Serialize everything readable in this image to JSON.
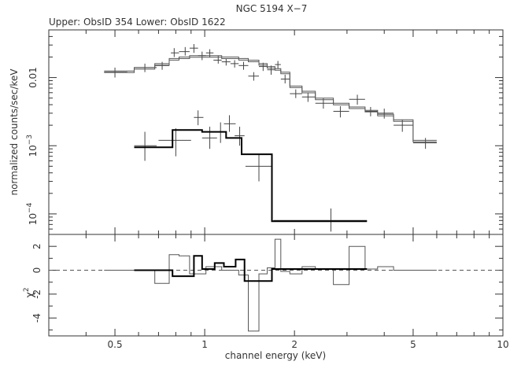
{
  "title": "NGC 5194 X−7",
  "subtitle": "Upper: ObsID 354 Lower: ObsID 1622",
  "chart_data": [
    {
      "type": "scatter",
      "panel": "spectrum",
      "xscale": "log",
      "yscale": "log",
      "xlim": [
        0.3,
        10
      ],
      "ylim": [
        5e-05,
        0.05
      ],
      "xlabel": "",
      "ylabel": "normalized counts/sec/keV",
      "yticks": [
        {
          "value": 0.01,
          "base": "0.01",
          "exp": ""
        },
        {
          "value": 0.001,
          "base": "10",
          "exp": "−3"
        },
        {
          "value": 0.0001,
          "base": "10",
          "exp": "−4"
        }
      ],
      "series": [
        {
          "kind": "data",
          "points": [
            {
              "x": 0.5,
              "xerr": [
                0.46,
                0.55
              ],
              "y": 0.012,
              "yerr": [
                0.01,
                0.014
              ]
            },
            {
              "x": 0.63,
              "xerr": [
                0.58,
                0.69
              ],
              "y": 0.014,
              "yerr": [
                0.012,
                0.016
              ]
            },
            {
              "x": 0.72,
              "xerr": [
                0.68,
                0.76
              ],
              "y": 0.015,
              "yerr": [
                0.013,
                0.017
              ]
            },
            {
              "x": 0.79,
              "xerr": [
                0.77,
                0.82
              ],
              "y": 0.023,
              "yerr": [
                0.02,
                0.027
              ]
            },
            {
              "x": 0.86,
              "xerr": [
                0.82,
                0.89
              ],
              "y": 0.024,
              "yerr": [
                0.021,
                0.028
              ]
            },
            {
              "x": 0.92,
              "xerr": [
                0.89,
                0.95
              ],
              "y": 0.027,
              "yerr": [
                0.023,
                0.031
              ]
            },
            {
              "x": 0.98,
              "xerr": [
                0.95,
                1.01
              ],
              "y": 0.021,
              "yerr": [
                0.018,
                0.024
              ]
            },
            {
              "x": 1.04,
              "xerr": [
                1.01,
                1.07
              ],
              "y": 0.023,
              "yerr": [
                0.02,
                0.026
              ]
            },
            {
              "x": 1.11,
              "xerr": [
                1.07,
                1.14
              ],
              "y": 0.018,
              "yerr": [
                0.016,
                0.021
              ]
            },
            {
              "x": 1.18,
              "xerr": [
                1.14,
                1.22
              ],
              "y": 0.017,
              "yerr": [
                0.015,
                0.019
              ]
            },
            {
              "x": 1.26,
              "xerr": [
                1.22,
                1.3
              ],
              "y": 0.016,
              "yerr": [
                0.014,
                0.018
              ]
            },
            {
              "x": 1.35,
              "xerr": [
                1.3,
                1.4
              ],
              "y": 0.015,
              "yerr": [
                0.013,
                0.017
              ]
            },
            {
              "x": 1.46,
              "xerr": [
                1.4,
                1.52
              ],
              "y": 0.0105,
              "yerr": [
                0.009,
                0.012
              ]
            },
            {
              "x": 1.57,
              "xerr": [
                1.52,
                1.62
              ],
              "y": 0.0145,
              "yerr": [
                0.0125,
                0.0165
              ]
            },
            {
              "x": 1.67,
              "xerr": [
                1.62,
                1.72
              ],
              "y": 0.013,
              "yerr": [
                0.011,
                0.015
              ]
            },
            {
              "x": 1.76,
              "xerr": [
                1.72,
                1.8
              ],
              "y": 0.0155,
              "yerr": [
                0.0135,
                0.0175
              ]
            },
            {
              "x": 1.86,
              "xerr": [
                1.8,
                1.93
              ],
              "y": 0.0095,
              "yerr": [
                0.0082,
                0.011
              ]
            },
            {
              "x": 2.02,
              "xerr": [
                1.93,
                2.12
              ],
              "y": 0.0058,
              "yerr": [
                0.005,
                0.0067
              ]
            },
            {
              "x": 2.22,
              "xerr": [
                2.12,
                2.35
              ],
              "y": 0.0052,
              "yerr": [
                0.0044,
                0.006
              ]
            },
            {
              "x": 2.5,
              "xerr": [
                2.35,
                2.7
              ],
              "y": 0.0042,
              "yerr": [
                0.0035,
                0.005
              ]
            },
            {
              "x": 2.85,
              "xerr": [
                2.7,
                3.05
              ],
              "y": 0.0032,
              "yerr": [
                0.0026,
                0.0038
              ]
            },
            {
              "x": 3.25,
              "xerr": [
                3.05,
                3.45
              ],
              "y": 0.0048,
              "yerr": [
                0.004,
                0.0056
              ]
            },
            {
              "x": 3.6,
              "xerr": [
                3.45,
                3.8
              ],
              "y": 0.0032,
              "yerr": [
                0.0027,
                0.0037
              ]
            },
            {
              "x": 4.0,
              "xerr": [
                3.8,
                4.3
              ],
              "y": 0.003,
              "yerr": [
                0.0025,
                0.0035
              ]
            },
            {
              "x": 4.6,
              "xerr": [
                4.3,
                5.0
              ],
              "y": 0.002,
              "yerr": [
                0.0016,
                0.0024
              ]
            },
            {
              "x": 5.5,
              "xerr": [
                5.0,
                6.0
              ],
              "y": 0.0011,
              "yerr": [
                0.0009,
                0.0013
              ]
            }
          ]
        },
        {
          "kind": "model",
          "style": "double",
          "steps": [
            [
              0.46,
              0.0125
            ],
            [
              0.58,
              0.014
            ],
            [
              0.68,
              0.016
            ],
            [
              0.76,
              0.019
            ],
            [
              0.82,
              0.02
            ],
            [
              0.89,
              0.021
            ],
            [
              1.01,
              0.021
            ],
            [
              1.14,
              0.02
            ],
            [
              1.3,
              0.019
            ],
            [
              1.4,
              0.018
            ],
            [
              1.52,
              0.016
            ],
            [
              1.62,
              0.0145
            ],
            [
              1.72,
              0.0135
            ],
            [
              1.8,
              0.012
            ],
            [
              1.93,
              0.0075
            ],
            [
              2.12,
              0.0063
            ],
            [
              2.35,
              0.005
            ],
            [
              2.7,
              0.0042
            ],
            [
              3.05,
              0.0037
            ],
            [
              3.45,
              0.0033
            ],
            [
              3.8,
              0.0029
            ],
            [
              4.3,
              0.0024
            ],
            [
              5.0,
              0.0012
            ],
            [
              6.0,
              0.0012
            ]
          ]
        },
        {
          "kind": "data",
          "points": [
            {
              "x": 0.63,
              "xerr": [
                0.58,
                0.69
              ],
              "y": 0.001,
              "yerr": [
                0.0006,
                0.0016
              ]
            },
            {
              "x": 0.8,
              "xerr": [
                0.7,
                0.9
              ],
              "y": 0.0012,
              "yerr": [
                0.0007,
                0.0018
              ]
            },
            {
              "x": 0.95,
              "xerr": [
                0.92,
                0.99
              ],
              "y": 0.0026,
              "yerr": [
                0.002,
                0.0033
              ]
            },
            {
              "x": 1.04,
              "xerr": [
                0.98,
                1.1
              ],
              "y": 0.0013,
              "yerr": [
                0.0009,
                0.0019
              ]
            },
            {
              "x": 1.13,
              "xerr": [
                1.08,
                1.18
              ],
              "y": 0.0016,
              "yerr": [
                0.0011,
                0.0022
              ]
            },
            {
              "x": 1.21,
              "xerr": [
                1.16,
                1.27
              ],
              "y": 0.0021,
              "yerr": [
                0.0016,
                0.0028
              ]
            },
            {
              "x": 1.31,
              "xerr": [
                1.26,
                1.36
              ],
              "y": 0.0014,
              "yerr": [
                0.001,
                0.0019
              ]
            },
            {
              "x": 1.52,
              "xerr": [
                1.37,
                1.68
              ],
              "y": 0.0005,
              "yerr": [
                0.0003,
                0.00075
              ]
            },
            {
              "x": 2.65,
              "xerr": [
                1.7,
                3.5
              ],
              "y": 8e-05,
              "yerr": [
                5.5e-05,
                0.00012
              ]
            }
          ]
        },
        {
          "kind": "model",
          "style": "thick",
          "steps": [
            [
              0.58,
              0.00095
            ],
            [
              0.78,
              0.0017
            ],
            [
              0.98,
              0.0016
            ],
            [
              1.18,
              0.0013
            ],
            [
              1.33,
              0.00075
            ],
            [
              1.68,
              7.8e-05
            ],
            [
              3.5,
              7.8e-05
            ]
          ]
        }
      ]
    },
    {
      "type": "line",
      "panel": "residuals",
      "xscale": "log",
      "xlim": [
        0.3,
        10
      ],
      "ylim": [
        -5.5,
        3
      ],
      "xlabel": "channel energy (keV)",
      "ylabel": "χ",
      "ylabel_sup": "2",
      "xticks": [
        "0.5",
        "1",
        "2",
        "5",
        "10"
      ],
      "yticks": [
        2,
        0,
        -2,
        -4
      ],
      "zero_line": "dashed",
      "series": [
        {
          "style": "thin",
          "steps": [
            [
              0.46,
              0
            ],
            [
              0.58,
              0
            ],
            [
              0.68,
              -1.1
            ],
            [
              0.76,
              1.3
            ],
            [
              0.82,
              1.2
            ],
            [
              0.89,
              -0.3
            ],
            [
              1.01,
              0.3
            ],
            [
              1.14,
              0
            ],
            [
              1.3,
              -0.4
            ],
            [
              1.4,
              -5.1
            ],
            [
              1.52,
              -0.3
            ],
            [
              1.62,
              0.2
            ],
            [
              1.72,
              2.6
            ],
            [
              1.8,
              -0.1
            ],
            [
              1.93,
              -0.3
            ],
            [
              2.12,
              0.3
            ],
            [
              2.35,
              0.1
            ],
            [
              2.7,
              -1.2
            ],
            [
              3.05,
              2.0
            ],
            [
              3.45,
              0.1
            ],
            [
              3.8,
              0.3
            ],
            [
              4.3,
              0
            ],
            [
              5.0,
              0
            ],
            [
              6.0,
              0
            ]
          ]
        },
        {
          "style": "thick",
          "steps": [
            [
              0.58,
              0
            ],
            [
              0.78,
              -0.5
            ],
            [
              0.92,
              1.2
            ],
            [
              0.98,
              0.1
            ],
            [
              1.08,
              0.6
            ],
            [
              1.16,
              0.3
            ],
            [
              1.27,
              0.9
            ],
            [
              1.36,
              -0.9
            ],
            [
              1.68,
              0.1
            ],
            [
              2.2,
              0.1
            ],
            [
              3.5,
              0.1
            ]
          ]
        }
      ]
    }
  ]
}
